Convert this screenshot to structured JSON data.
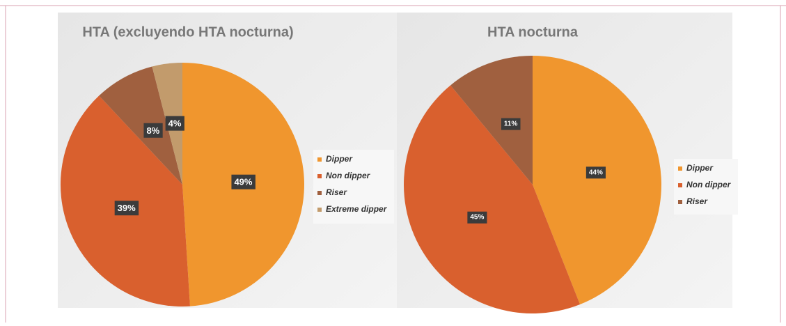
{
  "chart_data": [
    {
      "type": "pie",
      "title": "HTA (excluyendo HTA nocturna)",
      "categories": [
        "Dipper",
        "Non dipper",
        "Riser",
        "Extreme dipper"
      ],
      "values": [
        49,
        39,
        8,
        4
      ],
      "value_labels": [
        "49%",
        "39%",
        "8%",
        "4%"
      ],
      "colors": [
        "#f0962e",
        "#d9602e",
        "#a0603f",
        "#c29b6c"
      ]
    },
    {
      "type": "pie",
      "title": "HTA nocturna",
      "categories": [
        "Dipper",
        "Non dipper",
        "Riser"
      ],
      "values": [
        44,
        45,
        11
      ],
      "value_labels": [
        "44%",
        "45%",
        "11%"
      ],
      "colors": [
        "#f0962e",
        "#d9602e",
        "#a0603f"
      ]
    }
  ]
}
